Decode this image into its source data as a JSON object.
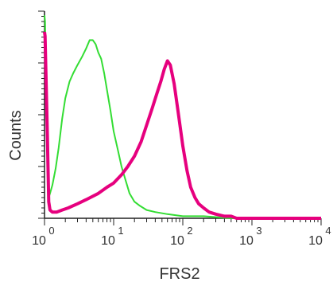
{
  "chart_data": {
    "type": "line",
    "title": "",
    "xlabel": "FRS2",
    "ylabel": "Counts",
    "xscale": "log",
    "xlim": [
      1,
      10000
    ],
    "ylim": [
      0,
      100
    ],
    "grid": false,
    "legend": "none",
    "x_ticks": [
      {
        "base": "10",
        "exp": "0"
      },
      {
        "base": "10",
        "exp": "1"
      },
      {
        "base": "10",
        "exp": "2"
      },
      {
        "base": "10",
        "exp": "3"
      },
      {
        "base": "10",
        "exp": "4"
      }
    ],
    "series": [
      {
        "color": "#33dd33",
        "x": [
          1.0,
          1.02,
          1.05,
          1.1,
          1.15,
          1.2,
          1.3,
          1.45,
          1.6,
          1.8,
          2.0,
          2.3,
          2.6,
          3.0,
          3.5,
          4.0,
          4.5,
          5.0,
          5.5,
          6.0,
          6.6,
          7.3,
          8.0,
          9.0,
          10.0,
          11.5,
          13.0,
          15.0,
          17.0,
          20.0,
          24.0,
          30.0,
          40.0,
          60.0,
          100.0,
          200.0,
          500.0,
          1000.0,
          10000.0
        ],
        "y": [
          98,
          95,
          70,
          30,
          10,
          12,
          16,
          24,
          34,
          48,
          58,
          66,
          70,
          74,
          78,
          82,
          86,
          86,
          84,
          80,
          77,
          70,
          62,
          52,
          42,
          33,
          25,
          18,
          12,
          8,
          6,
          4,
          3,
          2,
          1,
          1,
          0,
          0,
          0
        ]
      },
      {
        "color": "#e6007e",
        "x": [
          1.0,
          1.02,
          1.05,
          1.1,
          1.15,
          1.2,
          1.3,
          1.5,
          1.8,
          2.2,
          3.0,
          4.0,
          6.0,
          8.0,
          10.0,
          13.0,
          16.0,
          20.0,
          25.0,
          30.0,
          36.0,
          42.0,
          48.0,
          54.0,
          60.0,
          66.0,
          75.0,
          85.0,
          100.0,
          115.0,
          130.0,
          150.0,
          170.0,
          200.0,
          240.0,
          300.0,
          400.0,
          500.0,
          600.0,
          800.0,
          1000.0,
          10000.0
        ],
        "y": [
          90,
          88,
          70,
          40,
          8,
          4,
          3,
          3,
          4,
          5,
          7,
          9,
          12,
          15,
          17,
          21,
          25,
          30,
          37,
          45,
          53,
          60,
          66,
          72,
          76,
          74,
          65,
          52,
          35,
          23,
          15,
          10,
          7,
          5,
          3,
          2,
          1,
          1,
          0,
          0,
          0,
          0
        ]
      }
    ]
  }
}
